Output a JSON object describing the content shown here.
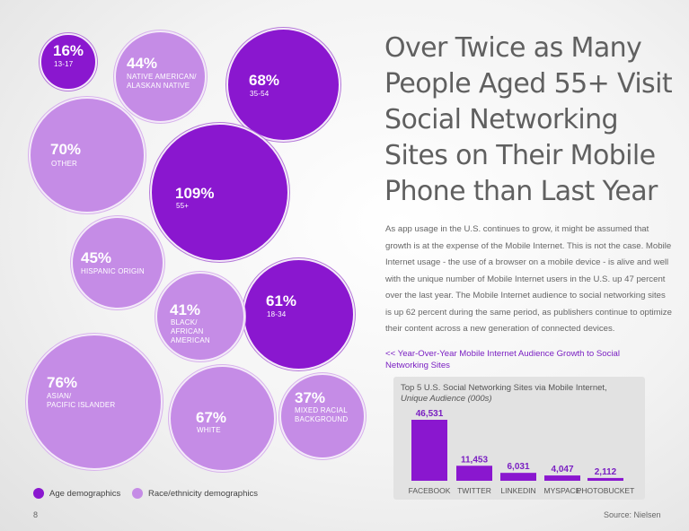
{
  "title": "Over Twice as Many\nPeople Aged 55+ Visit\nSocial Networking\nSites on Their Mobile\nPhone than Last Year",
  "body": "As app usage in the U.S. continues to grow, it might be assumed that growth is at the expense of the Mobile Internet. This is not the case. Mobile Internet usage - the use of a browser on a mobile device - is alive and well with the unique number of Mobile Internet users in the U.S. up 47 percent over the last year. The Mobile Internet audience to social networking sites is up 62 percent during the same period, as publishers continue to optimize their content across a new generation of connected devices.",
  "link": "<< Year-Over-Year Mobile Internet Audience Growth to Social Networking Sites",
  "legend": {
    "age": "Age demographics",
    "race": "Race/ethnicity demographics"
  },
  "colors": {
    "age": "#8a17cf",
    "race": "#c58ce6",
    "bar": "#8a17cf"
  },
  "bubbles": {
    "b1316": {
      "pct": "16%",
      "label": "13-17"
    },
    "bnative": {
      "pct": "44%",
      "label": "NATIVE AMERICAN/\nALASKAN NATIVE"
    },
    "b3554": {
      "pct": "68%",
      "label": "35-54"
    },
    "bother": {
      "pct": "70%",
      "label": "OTHER"
    },
    "b55": {
      "pct": "109%",
      "label": "55+"
    },
    "bhisp": {
      "pct": "45%",
      "label": "HISPANIC ORIGIN"
    },
    "b1834": {
      "pct": "61%",
      "label": "18-34"
    },
    "bblack": {
      "pct": "41%",
      "label": "BLACK/\nAFRICAN\nAMERICAN"
    },
    "basian": {
      "pct": "76%",
      "label": "ASIAN/\nPACIFIC ISLANDER"
    },
    "bwhite": {
      "pct": "67%",
      "label": "WHITE"
    },
    "bmixed": {
      "pct": "37%",
      "label": "MIXED RACIAL\nBACKGROUND"
    }
  },
  "footer": {
    "page": "8",
    "source": "Source: Nielsen"
  },
  "chart_data": [
    {
      "type": "scatter",
      "series": [
        {
          "name": "Age demographics",
          "categories": [
            "13-17",
            "18-34",
            "35-54",
            "55+"
          ],
          "values": [
            16,
            61,
            68,
            109
          ]
        },
        {
          "name": "Race/ethnicity demographics",
          "categories": [
            "Native American/Alaskan Native",
            "Other",
            "Hispanic Origin",
            "Black/African American",
            "Asian/Pacific Islander",
            "White",
            "Mixed Racial Background"
          ],
          "values": [
            44,
            70,
            45,
            41,
            76,
            67,
            37
          ]
        }
      ],
      "title": "Year-Over-Year Mobile Internet Audience Growth to Social Networking Sites",
      "legend": "bottom-left"
    },
    {
      "type": "bar",
      "title": "Top 5 U.S. Social Networking Sites via Mobile Internet,",
      "subtitle": "Unique Audience (000s)",
      "categories": [
        "FACEBOOK",
        "TWITTER",
        "LINKEDIN",
        "MYSPACE",
        "PHOTOBUCKET"
      ],
      "values": [
        46531,
        11453,
        6031,
        4047,
        2112
      ],
      "value_labels": [
        "46,531",
        "11,453",
        "6,031",
        "4,047",
        "2,112"
      ],
      "ylim": [
        0,
        46531
      ],
      "grid": false
    }
  ]
}
